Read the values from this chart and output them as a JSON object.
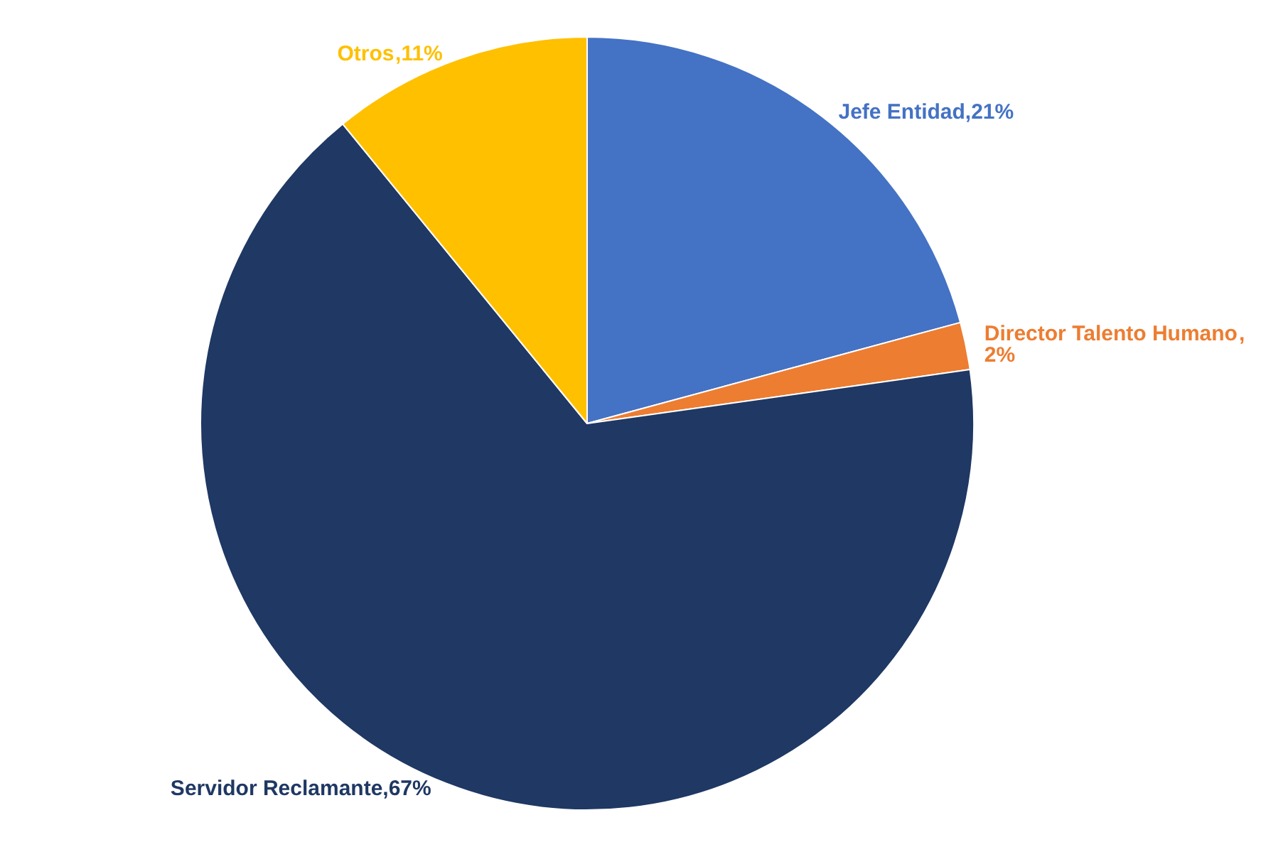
{
  "chart_data": {
    "type": "pie",
    "categories": [
      "Jefe Entidad",
      "Director Talento Humano",
      "Servidor Reclamante",
      "Otros"
    ],
    "values": [
      21,
      2,
      67,
      11
    ],
    "value_labels": [
      ",21%",
      ",2%",
      ",67%",
      ",11%"
    ],
    "colors": [
      "#4472c4",
      "#ed7d31",
      "#1f3864",
      "#ffc000"
    ]
  }
}
